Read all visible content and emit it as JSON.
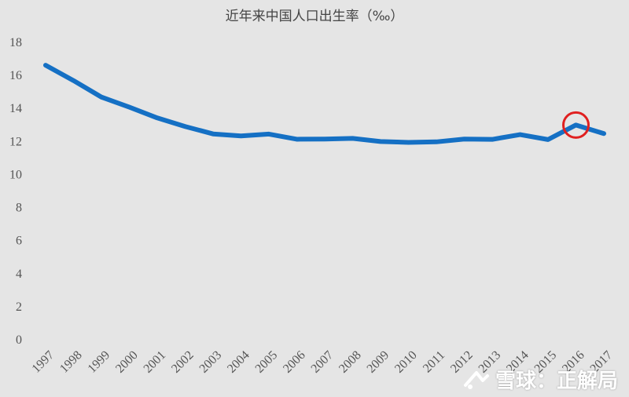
{
  "chart_data": {
    "type": "line",
    "title": "近年来中国人口出生率（‰）",
    "xlabel": "",
    "ylabel": "",
    "categories": [
      "1997",
      "1998",
      "1999",
      "2000",
      "2001",
      "2002",
      "2003",
      "2004",
      "2005",
      "2006",
      "2007",
      "2008",
      "2009",
      "2010",
      "2011",
      "2012",
      "2013",
      "2014",
      "2015",
      "2016",
      "2017"
    ],
    "values": [
      16.57,
      15.64,
      14.64,
      14.03,
      13.38,
      12.86,
      12.41,
      12.29,
      12.4,
      12.09,
      12.1,
      12.14,
      11.95,
      11.9,
      11.93,
      12.1,
      12.08,
      12.37,
      12.07,
      12.95,
      12.43
    ],
    "yticks": [
      0,
      2,
      4,
      6,
      8,
      10,
      12,
      14,
      16,
      18
    ],
    "ylim": [
      0,
      18
    ],
    "grid": false,
    "legend": "none",
    "highlight": {
      "category": "2016",
      "marker": "circle"
    },
    "colors": {
      "line": "#1570c4",
      "highlight": "#e02020",
      "background": "#e5e5e5"
    }
  },
  "watermark": {
    "text": "雪球：正解局"
  },
  "icons": {
    "watermark_logo": "snowball-logo-icon"
  }
}
